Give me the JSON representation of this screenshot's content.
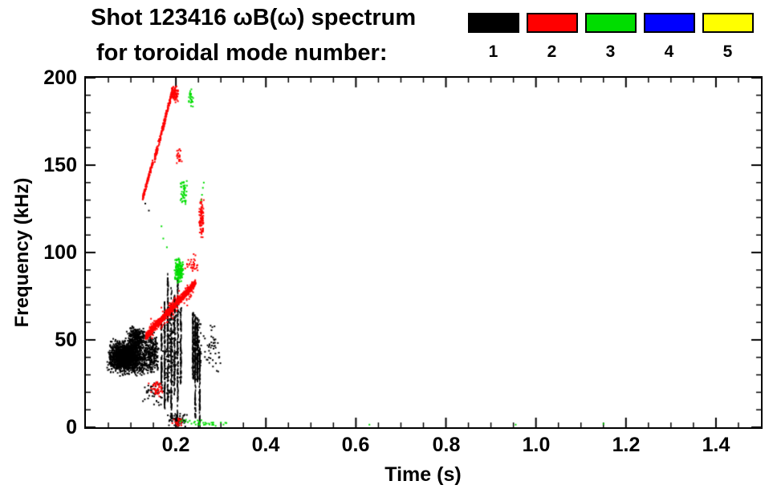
{
  "header": {
    "title_line1": "Shot 123416 ωB(ω) spectrum",
    "title_line2": "for toroidal mode number:"
  },
  "chart_data": {
    "type": "scatter",
    "title": "Shot 123416 ωB(ω) spectrum for toroidal mode number",
    "xlabel": "Time (s)",
    "ylabel": "Frequency (kHz)",
    "xlim": [
      0,
      1.5
    ],
    "ylim": [
      0,
      200
    ],
    "xticks": [
      0.2,
      0.4,
      0.6,
      0.8,
      1.0,
      1.2,
      1.4
    ],
    "xtick_labels": [
      "0.2",
      "0.4",
      "0.6",
      "0.8",
      "1.0",
      "1.2",
      "1.4"
    ],
    "yticks": [
      0,
      50,
      100,
      150,
      200
    ],
    "ytick_labels_top_down": [
      "200",
      "150",
      "100",
      "50",
      "0"
    ],
    "x_minor_interval": 0.05,
    "y_minor_interval": 10,
    "grid": false,
    "legend_position": "top-right",
    "series": [
      {
        "name": "1",
        "mode_number": 1,
        "color": "#000000",
        "features": [
          {
            "kind": "cluster",
            "t": [
              0.045,
              0.155
            ],
            "f": [
              29,
              52
            ],
            "n": 900,
            "size": 2
          },
          {
            "kind": "cluster",
            "t": [
              0.05,
              0.12
            ],
            "f": [
              33,
              48
            ],
            "n": 1100,
            "size": 2
          },
          {
            "kind": "cluster",
            "t": [
              0.09,
              0.135
            ],
            "f": [
              44,
              58
            ],
            "n": 250,
            "size": 2
          },
          {
            "kind": "cluster",
            "t": [
              0.13,
              0.165
            ],
            "f": [
              30,
              55
            ],
            "n": 180,
            "size": 2
          },
          {
            "kind": "vline",
            "t": 0.168,
            "f": [
              22,
              62
            ],
            "n": 90
          },
          {
            "kind": "vline",
            "t": 0.175,
            "f": [
              10,
              72
            ],
            "n": 110
          },
          {
            "kind": "vline",
            "t": 0.182,
            "f": [
              15,
              88
            ],
            "n": 120
          },
          {
            "kind": "vline",
            "t": 0.19,
            "f": [
              5,
              80
            ],
            "n": 120
          },
          {
            "kind": "vline",
            "t": 0.197,
            "f": [
              18,
              76
            ],
            "n": 110
          },
          {
            "kind": "vline",
            "t": 0.204,
            "f": [
              0,
              90
            ],
            "n": 130
          },
          {
            "kind": "vline",
            "t": 0.211,
            "f": [
              25,
              68
            ],
            "n": 80
          },
          {
            "kind": "cluster",
            "t": [
              0.165,
              0.215
            ],
            "f": [
              20,
              75
            ],
            "n": 140,
            "size": 2
          },
          {
            "kind": "vline",
            "t": 0.238,
            "f": [
              28,
              66
            ],
            "n": 100
          },
          {
            "kind": "vline",
            "t": 0.243,
            "f": [
              5,
              64
            ],
            "n": 110
          },
          {
            "kind": "vline",
            "t": 0.248,
            "f": [
              25,
              62
            ],
            "n": 100
          },
          {
            "kind": "vline",
            "t": 0.253,
            "f": [
              0,
              45
            ],
            "n": 90
          },
          {
            "kind": "cluster",
            "t": [
              0.235,
              0.258
            ],
            "f": [
              25,
              65
            ],
            "n": 130,
            "size": 2
          },
          {
            "kind": "cluster",
            "t": [
              0.18,
              0.23
            ],
            "f": [
              0,
              8
            ],
            "n": 70,
            "size": 2
          },
          {
            "kind": "cluster",
            "t": [
              0.12,
              0.2
            ],
            "f": [
              12,
              28
            ],
            "n": 55,
            "size": 2
          },
          {
            "kind": "cluster",
            "t": [
              0.26,
              0.3
            ],
            "f": [
              30,
              60
            ],
            "n": 45,
            "size": 2
          },
          {
            "kind": "dots",
            "points": [
              [
                0.132,
                128
              ],
              [
                0.14,
                124
              ]
            ],
            "size": 2
          }
        ]
      },
      {
        "name": "2",
        "mode_number": 2,
        "color": "#ff0000",
        "features": [
          {
            "kind": "chirp",
            "t0": 0.133,
            "f0": 52,
            "t1": 0.245,
            "f1": 83,
            "spread": 2.5,
            "n": 700,
            "size": 2
          },
          {
            "kind": "chirp",
            "t0": 0.14,
            "f0": 55,
            "t1": 0.24,
            "f1": 80,
            "spread": 7,
            "n": 150,
            "size": 2
          },
          {
            "kind": "chirp",
            "t0": 0.126,
            "f0": 131,
            "t1": 0.149,
            "f1": 152,
            "spread": 2,
            "n": 120,
            "size": 2
          },
          {
            "kind": "chirp",
            "t0": 0.153,
            "f0": 154,
            "t1": 0.193,
            "f1": 193,
            "spread": 2.5,
            "n": 200,
            "size": 2
          },
          {
            "kind": "cluster",
            "t": [
              0.19,
              0.207
            ],
            "f": [
              185,
              196
            ],
            "n": 80,
            "size": 2
          },
          {
            "kind": "cluster",
            "t": [
              0.251,
              0.263
            ],
            "f": [
              108,
              132
            ],
            "n": 90,
            "size": 2
          },
          {
            "kind": "cluster",
            "t": [
              0.138,
              0.175
            ],
            "f": [
              16,
              28
            ],
            "n": 45,
            "size": 2
          },
          {
            "kind": "cluster",
            "t": [
              0.2,
              0.215
            ],
            "f": [
              148,
              162
            ],
            "n": 20,
            "size": 2
          },
          {
            "kind": "cluster",
            "t": [
              0.22,
              0.25
            ],
            "f": [
              86,
              100
            ],
            "n": 30,
            "size": 2
          },
          {
            "kind": "cluster",
            "t": [
              0.19,
              0.22
            ],
            "f": [
              0,
              6
            ],
            "n": 20,
            "size": 2
          }
        ]
      },
      {
        "name": "3",
        "mode_number": 3,
        "color": "#00dd00",
        "features": [
          {
            "kind": "cluster",
            "t": [
              0.196,
              0.218
            ],
            "f": [
              82,
              97
            ],
            "n": 160,
            "size": 2
          },
          {
            "kind": "cluster",
            "t": [
              0.208,
              0.226
            ],
            "f": [
              126,
              142
            ],
            "n": 45,
            "size": 2
          },
          {
            "kind": "dots",
            "points": [
              [
                0.258,
                133
              ],
              [
                0.26,
                137
              ],
              [
                0.256,
                130
              ],
              [
                0.262,
                140
              ]
            ],
            "size": 2
          },
          {
            "kind": "cluster",
            "t": [
              0.225,
              0.242
            ],
            "f": [
              182,
              196
            ],
            "n": 25,
            "size": 2
          },
          {
            "kind": "cluster",
            "t": [
              0.2,
              0.32
            ],
            "f": [
              0,
              5
            ],
            "n": 35,
            "size": 2
          },
          {
            "kind": "dots",
            "points": [
              [
                0.63,
                1.5
              ],
              [
                0.955,
                1.5
              ],
              [
                1.15,
                2
              ]
            ],
            "size": 2
          },
          {
            "kind": "dots",
            "points": [
              [
                0.172,
                108
              ],
              [
                0.168,
                115
              ],
              [
                0.18,
                103
              ]
            ],
            "size": 2
          }
        ]
      },
      {
        "name": "4",
        "mode_number": 4,
        "color": "#0000ff",
        "features": []
      },
      {
        "name": "5",
        "mode_number": 5,
        "color": "#ffff00",
        "features": []
      }
    ]
  }
}
